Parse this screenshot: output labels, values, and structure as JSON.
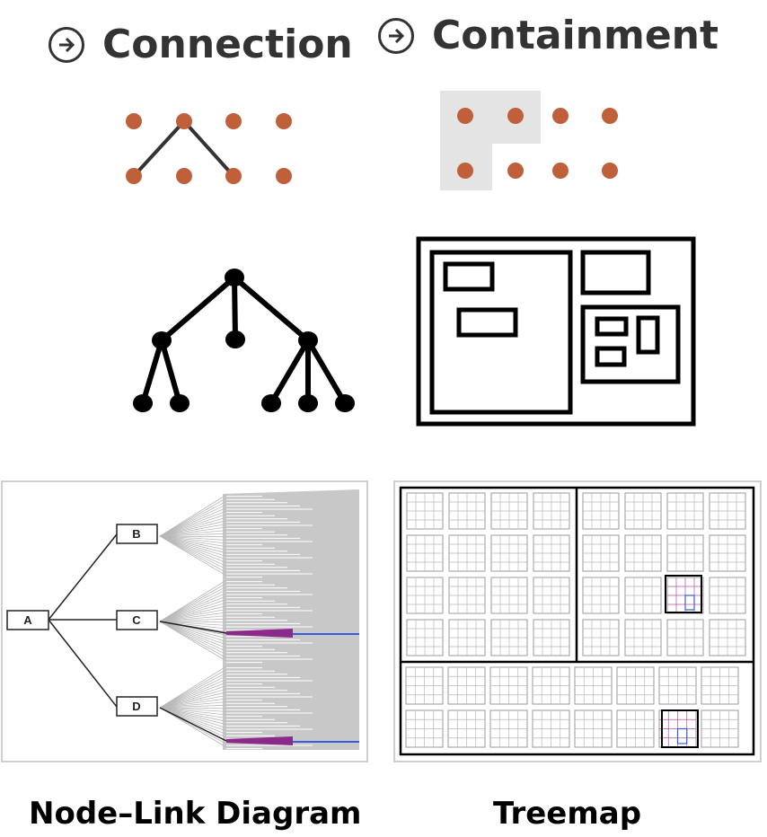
{
  "headings": {
    "connection": "Connection",
    "containment": "Containment"
  },
  "captions": {
    "node_link": "Node–Link Diagram",
    "treemap": "Treemap"
  },
  "node_link_diagram": {
    "nodes": [
      "A",
      "B",
      "C",
      "D"
    ]
  },
  "colors": {
    "dot": "#c0603a",
    "containment_shade": "#e4e4e4",
    "fan_gray": "#c8c8c8",
    "highlight_purple": "#8a2a8a",
    "highlight_blue": "#3a5cd8"
  },
  "icons": [
    "arrow-right-circle-icon",
    "arrow-right-circle-icon"
  ]
}
